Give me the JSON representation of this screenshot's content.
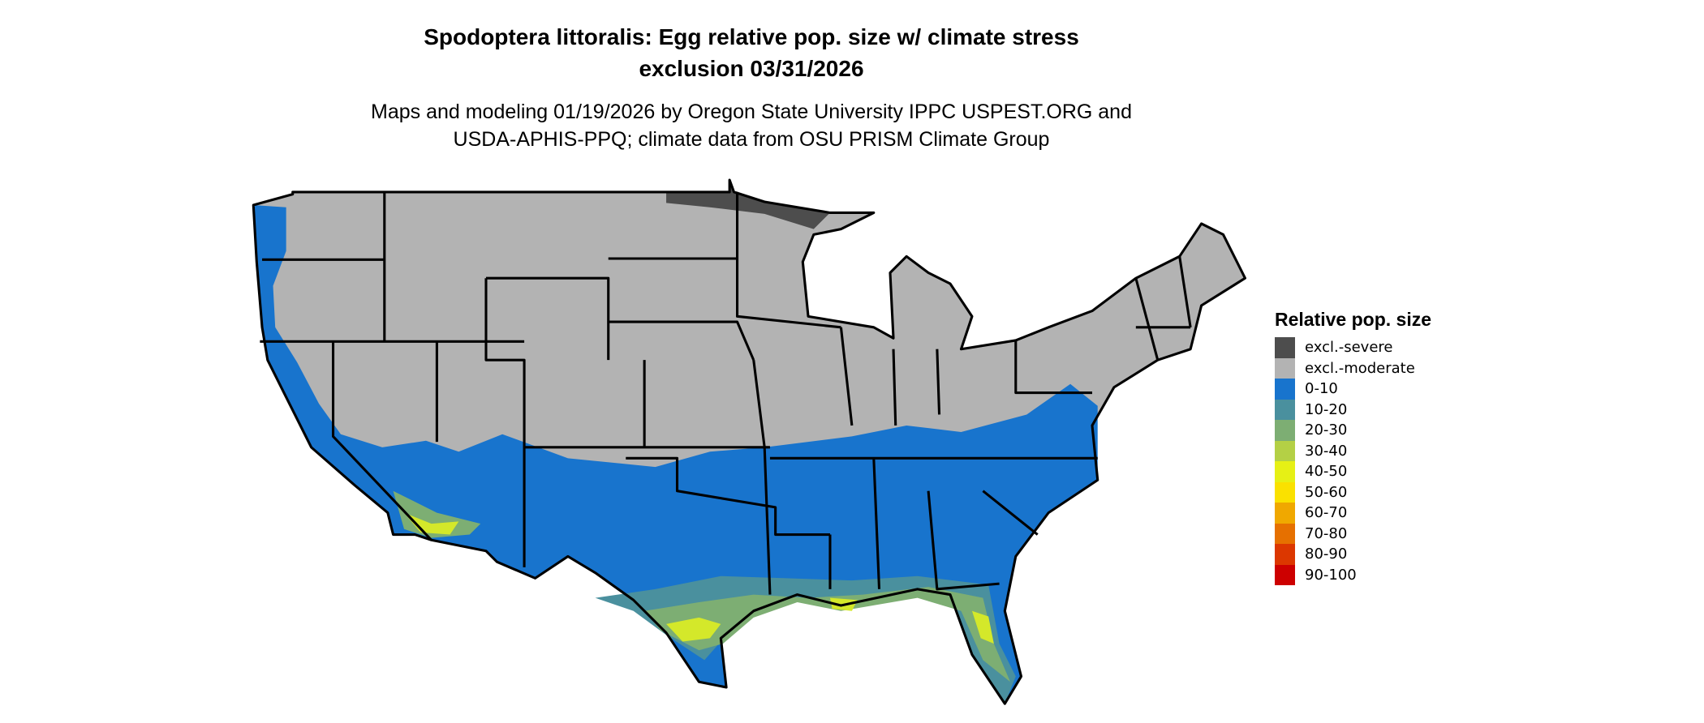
{
  "title_line1": "Spodoptera littoralis: Egg relative pop. size w/ climate stress",
  "title_line2": "exclusion 03/31/2026",
  "subtitle_line1": "Maps and modeling 01/19/2026 by Oregon State University IPPC USPEST.ORG and",
  "subtitle_line2": "USDA-APHIS-PPQ; climate data from OSU PRISM Climate Group",
  "map": {
    "region": "Contiguous United States",
    "boundaries": "state outlines"
  },
  "legend": {
    "title": "Relative pop. size",
    "items": [
      {
        "label": "excl.-severe",
        "color": "#4d4d4d"
      },
      {
        "label": "excl.-moderate",
        "color": "#b3b3b3"
      },
      {
        "label": "0-10",
        "color": "#1874cd"
      },
      {
        "label": "10-20",
        "color": "#4a909e"
      },
      {
        "label": "20-30",
        "color": "#7dae73"
      },
      {
        "label": "30-40",
        "color": "#b4d045"
      },
      {
        "label": "40-50",
        "color": "#e6f015"
      },
      {
        "label": "50-60",
        "color": "#fae100"
      },
      {
        "label": "60-70",
        "color": "#f0a800"
      },
      {
        "label": "70-80",
        "color": "#e67000"
      },
      {
        "label": "80-90",
        "color": "#dc3700"
      },
      {
        "label": "90-100",
        "color": "#cd0000"
      }
    ]
  }
}
